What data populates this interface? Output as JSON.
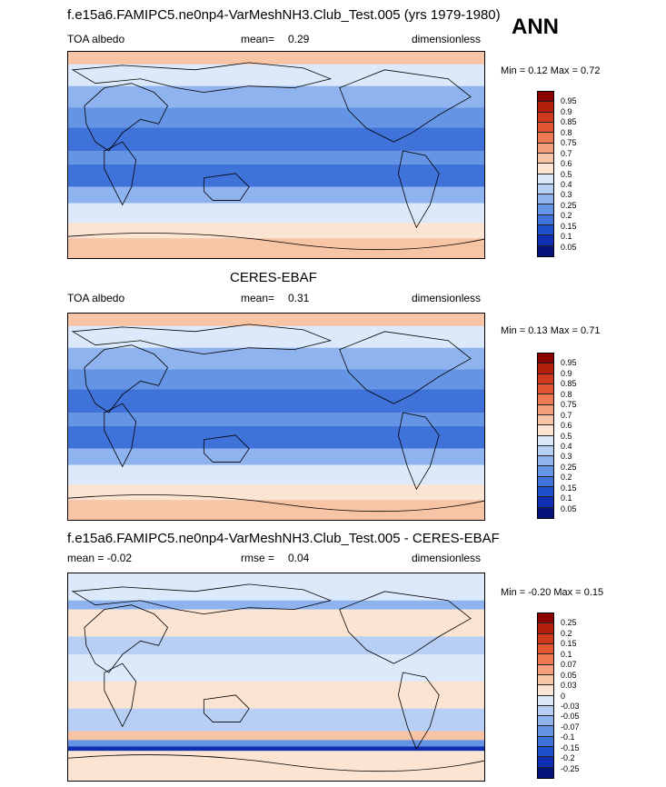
{
  "header": {
    "top_title": "f.e15a6.FAMIPC5.ne0np4-VarMeshNH3.Club_Test.005 (yrs 1979-1980)",
    "season": "ANN"
  },
  "panels": [
    {
      "variable": "TOA albedo",
      "stat_label": "mean=",
      "stat_value": "0.29",
      "units": "dimensionless",
      "minmax": "Min =   0.12 Max =   0.72"
    },
    {
      "title": "CERES-EBAF",
      "variable": "TOA albedo",
      "stat_label": "mean=",
      "stat_value": "0.31",
      "units": "dimensionless",
      "minmax": "Min =   0.13 Max =   0.71"
    },
    {
      "title": "f.e15a6.FAMIPC5.ne0np4-VarMeshNH3.Club_Test.005 - CERES-EBAF",
      "variable": "mean =  -0.02",
      "stat_label": "rmse =",
      "stat_value": "0.04",
      "units": "dimensionless",
      "minmax": "Min =  -0.20 Max =   0.15"
    }
  ],
  "colorbars": {
    "field": {
      "levels": [
        "0.95",
        "0.9",
        "0.85",
        "0.8",
        "0.75",
        "0.7",
        "0.6",
        "0.5",
        "0.4",
        "0.3",
        "0.25",
        "0.2",
        "0.15",
        "0.1",
        "0.05"
      ],
      "colors": [
        "#8b0000",
        "#b3200e",
        "#cf3a1d",
        "#e2572f",
        "#ef7a52",
        "#f59e7c",
        "#f8c4a6",
        "#fbe4d2",
        "#dce9fa",
        "#b7cff5",
        "#8fb3ee",
        "#6694e4",
        "#3f73d9",
        "#1f4fcc",
        "#0e2fb2",
        "#05137a"
      ]
    },
    "diff": {
      "levels": [
        "0.25",
        "0.2",
        "0.15",
        "0.1",
        "0.07",
        "0.05",
        "0.03",
        "0",
        "-0.03",
        "-0.05",
        "-0.07",
        "-0.1",
        "-0.15",
        "-0.2",
        "-0.25"
      ],
      "colors": [
        "#8b0000",
        "#b3200e",
        "#cf3a1d",
        "#e2572f",
        "#ef7a52",
        "#f59e7c",
        "#f8c4a6",
        "#fbe4d2",
        "#dce9fa",
        "#b7cff5",
        "#8fb3ee",
        "#6694e4",
        "#3f73d9",
        "#1f4fcc",
        "#0e2fb2",
        "#05137a"
      ]
    }
  },
  "chart_data": [
    {
      "type": "heatmap",
      "title": "f.e15a6.FAMIPC5.ne0np4-VarMeshNH3.Club_Test.005 (yrs 1979-1980)",
      "variable": "TOA albedo",
      "units": "dimensionless",
      "mean": 0.29,
      "min": 0.12,
      "max": 0.72,
      "levels": [
        0.05,
        0.1,
        0.15,
        0.2,
        0.25,
        0.3,
        0.4,
        0.5,
        0.6,
        0.7,
        0.75,
        0.8,
        0.85,
        0.9,
        0.95
      ]
    },
    {
      "type": "heatmap",
      "title": "CERES-EBAF",
      "variable": "TOA albedo",
      "units": "dimensionless",
      "mean": 0.31,
      "min": 0.13,
      "max": 0.71,
      "levels": [
        0.05,
        0.1,
        0.15,
        0.2,
        0.25,
        0.3,
        0.4,
        0.5,
        0.6,
        0.7,
        0.75,
        0.8,
        0.85,
        0.9,
        0.95
      ]
    },
    {
      "type": "heatmap",
      "title": "f.e15a6.FAMIPC5.ne0np4-VarMeshNH3.Club_Test.005 - CERES-EBAF",
      "units": "dimensionless",
      "mean": -0.02,
      "rmse": 0.04,
      "min": -0.2,
      "max": 0.15,
      "levels": [
        -0.25,
        -0.2,
        -0.15,
        -0.1,
        -0.07,
        -0.05,
        -0.03,
        0,
        0.03,
        0.05,
        0.07,
        0.1,
        0.15,
        0.2,
        0.25
      ]
    }
  ]
}
